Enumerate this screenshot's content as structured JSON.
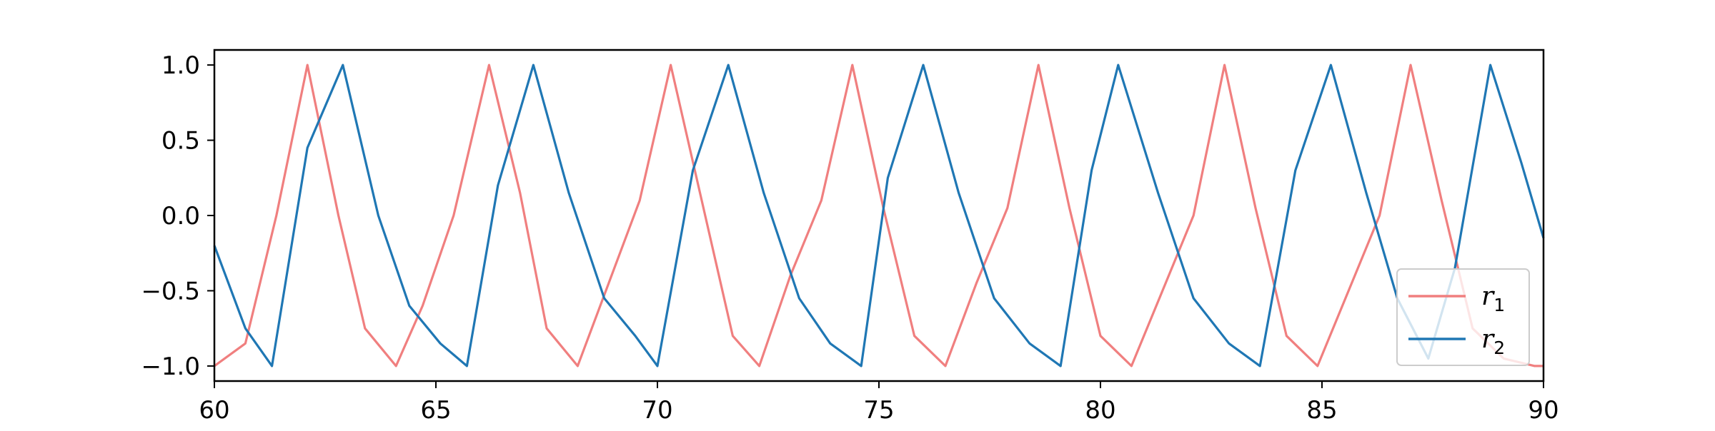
{
  "chart_data": {
    "type": "line",
    "title": "",
    "xlabel": "",
    "ylabel": "",
    "xlim": [
      60,
      90
    ],
    "ylim": [
      -1.1,
      1.1
    ],
    "x_ticks": [
      60,
      65,
      70,
      75,
      80,
      85,
      90
    ],
    "y_ticks": [
      -1.0,
      -0.5,
      0.0,
      0.5,
      1.0
    ],
    "x_tick_labels": [
      "60",
      "65",
      "70",
      "75",
      "80",
      "85",
      "90"
    ],
    "y_tick_labels": [
      "−1.0",
      "−0.5",
      "0.0",
      "0.5",
      "1.0"
    ],
    "grid": false,
    "legend_position": "bottom-right",
    "series": [
      {
        "name": "r",
        "name_subscript": "1",
        "color": "#f07f7f",
        "x": [
          60.0,
          60.7,
          61.4,
          62.1,
          62.8,
          63.4,
          64.1,
          64.7,
          65.4,
          66.2,
          66.9,
          67.5,
          68.2,
          68.9,
          69.6,
          70.3,
          71.0,
          71.7,
          72.3,
          73.0,
          73.7,
          74.4,
          75.1,
          75.8,
          76.5,
          77.2,
          77.9,
          78.6,
          79.3,
          80.0,
          80.7,
          81.4,
          82.1,
          82.8,
          83.5,
          84.2,
          84.9,
          85.6,
          86.3,
          87.0,
          87.7,
          88.4,
          89.1,
          89.8,
          90.0
        ],
        "y": [
          -1.0,
          -0.85,
          0.0,
          1.0,
          0.0,
          -0.75,
          -1.0,
          -0.6,
          0.0,
          1.0,
          0.15,
          -0.75,
          -1.0,
          -0.45,
          0.1,
          1.0,
          0.1,
          -0.8,
          -1.0,
          -0.4,
          0.1,
          1.0,
          0.05,
          -0.8,
          -1.0,
          -0.45,
          0.05,
          1.0,
          0.05,
          -0.8,
          -1.0,
          -0.5,
          0.0,
          1.0,
          0.05,
          -0.8,
          -1.0,
          -0.5,
          0.0,
          1.0,
          0.1,
          -0.75,
          -0.95,
          -1.0,
          -1.0
        ]
      },
      {
        "name": "r",
        "name_subscript": "2",
        "color": "#1f77b4",
        "x": [
          60.0,
          60.7,
          61.3,
          62.1,
          62.9,
          63.7,
          64.4,
          65.1,
          65.7,
          66.4,
          67.2,
          68.0,
          68.8,
          69.5,
          70.0,
          70.8,
          71.6,
          72.4,
          73.2,
          73.9,
          74.6,
          75.2,
          76.0,
          76.8,
          77.6,
          78.4,
          79.1,
          79.8,
          80.4,
          81.3,
          82.1,
          82.9,
          83.6,
          84.4,
          85.2,
          86.0,
          86.7,
          87.4,
          88.0,
          88.8,
          89.5,
          90.0
        ],
        "y": [
          -0.2,
          -0.75,
          -1.0,
          0.45,
          1.0,
          0.0,
          -0.6,
          -0.85,
          -1.0,
          0.2,
          1.0,
          0.15,
          -0.55,
          -0.8,
          -1.0,
          0.3,
          1.0,
          0.15,
          -0.55,
          -0.85,
          -1.0,
          0.25,
          1.0,
          0.15,
          -0.55,
          -0.85,
          -1.0,
          0.3,
          1.0,
          0.15,
          -0.55,
          -0.85,
          -1.0,
          0.3,
          1.0,
          0.15,
          -0.55,
          -0.95,
          -0.35,
          1.0,
          0.35,
          -0.15
        ]
      }
    ]
  }
}
